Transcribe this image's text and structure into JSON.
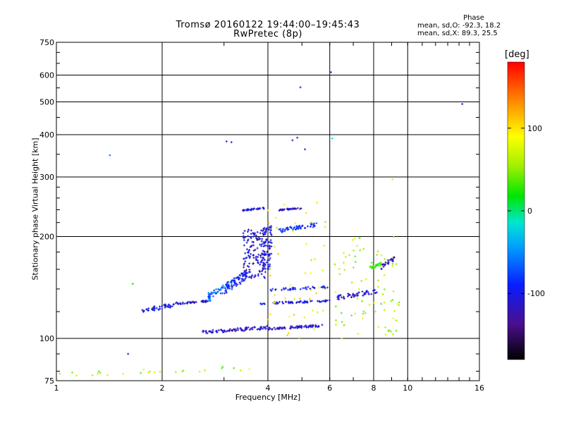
{
  "chart_data": {
    "type": "scatter",
    "title": "Tromsø 20160122 19:44:00–19:45:43",
    "subtitle": "RwPretec (8p)",
    "xlabel": "Frequency [MHz]",
    "ylabel": "Stationary phase Virtual Height [km]",
    "x_scale": "log",
    "y_scale": "log",
    "xlim": [
      1,
      16
    ],
    "ylim": [
      75,
      750
    ],
    "x_ticks": [
      1,
      2,
      4,
      6,
      8,
      10,
      16
    ],
    "x_tick_labels": [
      "1",
      "2",
      "4",
      "6",
      "8",
      "10",
      "16"
    ],
    "y_ticks": [
      75,
      100,
      200,
      300,
      400,
      500,
      600,
      750
    ],
    "y_tick_labels": [
      "75",
      "100",
      "200",
      "300",
      "400",
      "500",
      "600",
      "750"
    ],
    "grid": true,
    "phase_panel": {
      "heading": "Phase",
      "line_o": "mean, sd,O: -92.3, 18.2",
      "line_x": "mean, sd,X:  89.3, 25.5"
    },
    "colorbar": {
      "unit": "[deg]",
      "range": [
        -180,
        180
      ],
      "ticks": [
        100,
        0,
        -100
      ],
      "tick_labels": [
        "100",
        "0",
        "-100"
      ],
      "placement": "right"
    },
    "traces": [
      {
        "fmin": 1.75,
        "fmax": 2.2,
        "hmin": 119,
        "hmax": 128,
        "phase": -100,
        "n": 50
      },
      {
        "fmin": 2.2,
        "fmax": 2.75,
        "hmin": 126,
        "hmax": 130,
        "phase": -110,
        "n": 40
      },
      {
        "fmin": 2.7,
        "fmax": 3.2,
        "hmin": 128,
        "hmax": 150,
        "phase": -65,
        "n": 55
      },
      {
        "fmin": 3.0,
        "fmax": 3.5,
        "hmin": 135,
        "hmax": 160,
        "phase": -95,
        "n": 60
      },
      {
        "fmin": 3.4,
        "fmax": 3.95,
        "hmin": 150,
        "hmax": 210,
        "phase": -110,
        "n": 150
      },
      {
        "fmin": 3.85,
        "fmax": 4.1,
        "hmin": 160,
        "hmax": 215,
        "phase": -105,
        "n": 70
      },
      {
        "fmin": 3.4,
        "fmax": 3.9,
        "hmin": 238,
        "hmax": 244,
        "phase": -105,
        "n": 30
      },
      {
        "fmin": 4.25,
        "fmax": 5.0,
        "hmin": 238,
        "hmax": 244,
        "phase": -110,
        "n": 30
      },
      {
        "fmin": 4.3,
        "fmax": 5.5,
        "hmin": 205,
        "hmax": 220,
        "phase": -85,
        "n": 50
      },
      {
        "fmin": 2.6,
        "fmax": 4.0,
        "hmin": 103,
        "hmax": 109,
        "phase": -115,
        "n": 80
      },
      {
        "fmin": 4.0,
        "fmax": 5.8,
        "hmin": 106,
        "hmax": 110,
        "phase": -110,
        "n": 70
      },
      {
        "fmin": 3.8,
        "fmax": 6.0,
        "hmin": 126,
        "hmax": 130,
        "phase": -105,
        "n": 60
      },
      {
        "fmin": 4.0,
        "fmax": 6.0,
        "hmin": 138,
        "hmax": 143,
        "phase": -95,
        "n": 40
      },
      {
        "fmin": 6.3,
        "fmax": 8.2,
        "hmin": 130,
        "hmax": 140,
        "phase": -110,
        "n": 50
      },
      {
        "fmin": 6.2,
        "fmax": 9.5,
        "hmin": 100,
        "hmax": 200,
        "phase": 60,
        "n": 80
      },
      {
        "fmin": 4.0,
        "fmax": 5.9,
        "hmin": 100,
        "hmax": 260,
        "phase": 90,
        "n": 50
      },
      {
        "fmin": 7.8,
        "fmax": 8.4,
        "hmin": 160,
        "hmax": 168,
        "phase": 30,
        "n": 25
      },
      {
        "fmin": 8.4,
        "fmax": 9.2,
        "hmin": 160,
        "hmax": 175,
        "phase": -125,
        "n": 25
      },
      {
        "fmin": 1.0,
        "fmax": 3.6,
        "hmin": 77,
        "hmax": 83,
        "phase": 60,
        "n": 25
      }
    ],
    "isolated_points": [
      {
        "f": 6.05,
        "h": 612,
        "phase": -110
      },
      {
        "f": 4.95,
        "h": 552,
        "phase": -110
      },
      {
        "f": 14.3,
        "h": 493,
        "phase": -110
      },
      {
        "f": 3.05,
        "h": 382,
        "phase": -110
      },
      {
        "f": 3.15,
        "h": 380,
        "phase": -110
      },
      {
        "f": 4.7,
        "h": 385,
        "phase": -110
      },
      {
        "f": 4.85,
        "h": 392,
        "phase": -110
      },
      {
        "f": 5.1,
        "h": 362,
        "phase": -110
      },
      {
        "f": 6.1,
        "h": 390,
        "phase": -20
      },
      {
        "f": 1.42,
        "h": 348,
        "phase": -60
      },
      {
        "f": 9.05,
        "h": 295,
        "phase": 100
      },
      {
        "f": 1.65,
        "h": 145,
        "phase": 20
      },
      {
        "f": 1.6,
        "h": 90,
        "phase": -120
      }
    ]
  }
}
